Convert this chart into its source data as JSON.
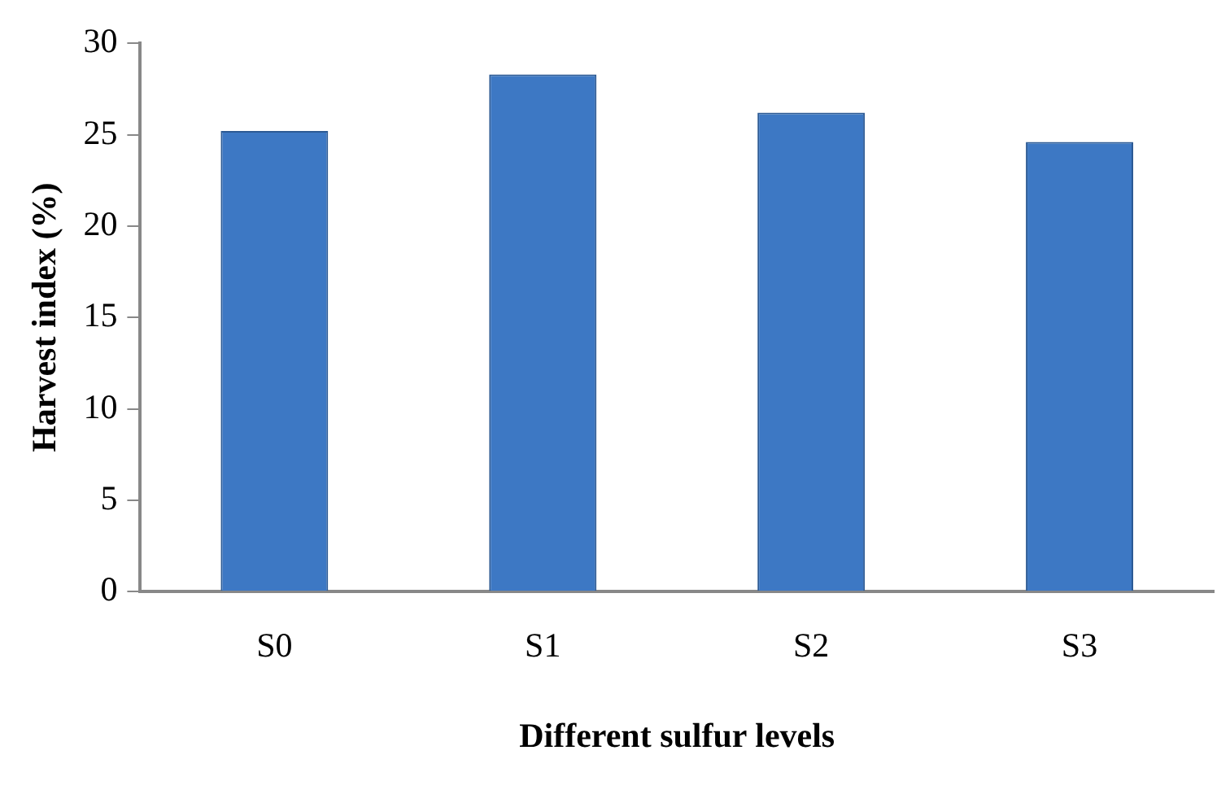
{
  "chart_data": {
    "type": "bar",
    "xlabel": "Different sulfur levels",
    "ylabel": "Harvest index (%)",
    "categories": [
      "S0",
      "S1",
      "S2",
      "S3"
    ],
    "values": [
      25.2,
      28.3,
      26.2,
      24.6
    ],
    "color": "#3d78c4",
    "ylim": [
      0,
      30
    ],
    "yticks": [
      0,
      5,
      10,
      15,
      20,
      25,
      30
    ],
    "grid": false,
    "legend": false
  }
}
